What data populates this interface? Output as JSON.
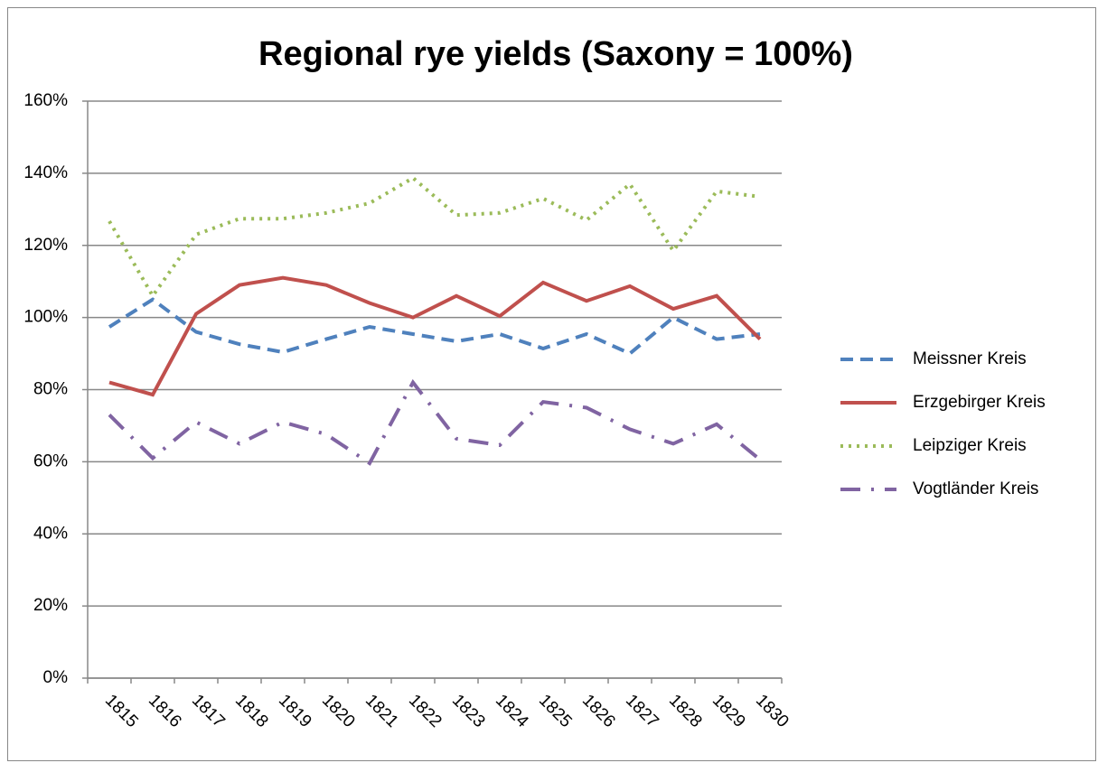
{
  "chart_data": {
    "type": "line",
    "title": "Regional rye yields (Saxony = 100%)",
    "categories": [
      "1815",
      "1816",
      "1817",
      "1818",
      "1819",
      "1820",
      "1821",
      "1822",
      "1823",
      "1824",
      "1825",
      "1826",
      "1827",
      "1828",
      "1829",
      "1830"
    ],
    "series": [
      {
        "name": "Meissner Kreis",
        "color": "#4f81bd",
        "dash": "dashed",
        "values": [
          97.4,
          105,
          96,
          92.6,
          90.4,
          94,
          97.4,
          95.4,
          93.4,
          95.4,
          91.4,
          95.4,
          90,
          100,
          94,
          95.4
        ]
      },
      {
        "name": "Erzgebirger Kreis",
        "color": "#c0504d",
        "dash": "solid",
        "values": [
          82,
          78.6,
          101,
          109,
          111,
          109,
          104,
          100,
          106,
          100.4,
          109.7,
          104.6,
          108.7,
          102.4,
          106,
          94
        ]
      },
      {
        "name": "Leipziger Kreis",
        "color": "#9bbb59",
        "dash": "dotted",
        "values": [
          126.7,
          106,
          123,
          127.4,
          127.4,
          129,
          131.7,
          138.7,
          128.4,
          129,
          133,
          127,
          137,
          118.5,
          135,
          133.5
        ]
      },
      {
        "name": "Vogtländer Kreis",
        "color": "#8064a2",
        "dash": "dash-dot",
        "values": [
          73,
          61,
          71,
          65,
          71,
          67.6,
          59.6,
          82,
          66.4,
          64.6,
          76.6,
          75,
          69,
          65,
          70.4,
          60.6
        ]
      }
    ],
    "ylim": [
      0,
      160
    ],
    "yticks": [
      {
        "value": 0,
        "label": "0%"
      },
      {
        "value": 20,
        "label": "20%"
      },
      {
        "value": 40,
        "label": "40%"
      },
      {
        "value": 60,
        "label": "60%"
      },
      {
        "value": 80,
        "label": "80%"
      },
      {
        "value": 100,
        "label": "100%"
      },
      {
        "value": 120,
        "label": "120%"
      },
      {
        "value": 140,
        "label": "140%"
      },
      {
        "value": 160,
        "label": "160%"
      }
    ],
    "grid": true,
    "legend": "right"
  }
}
